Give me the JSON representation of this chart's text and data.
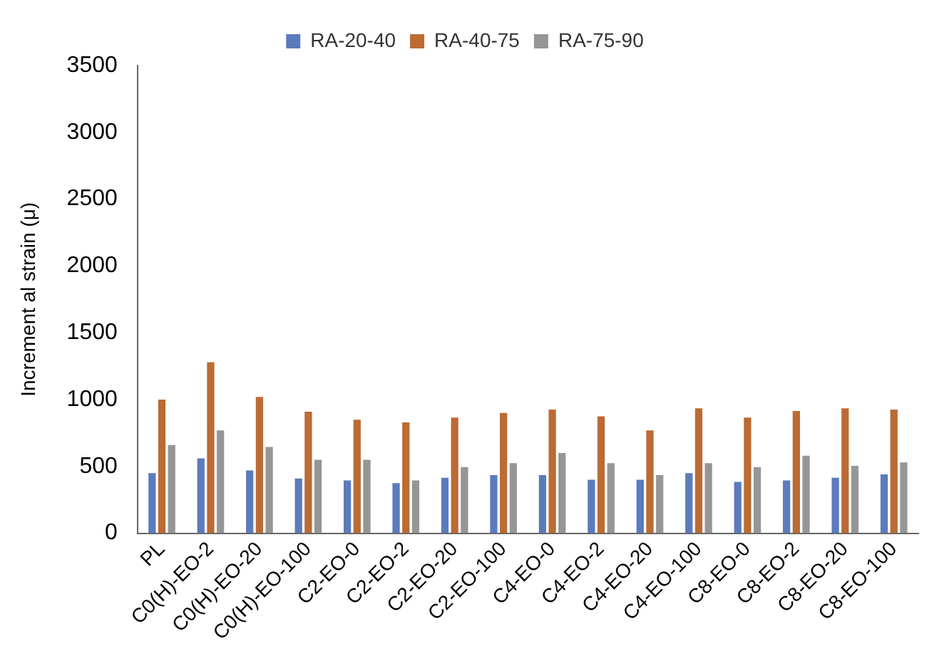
{
  "chart_data": {
    "type": "bar",
    "ylabel": "Increment al strain (μ)",
    "categories": [
      "PL",
      "C0(H)-EO-2",
      "C0(H)-EO-20",
      "C0(H)-EO-100",
      "C2-EO-0",
      "C2-EO-2",
      "C2-EO-20",
      "C2-EO-100",
      "C4-EO-0",
      "C4-EO-2",
      "C4-EO-20",
      "C4-EO-100",
      "C8-EO-0",
      "C8-EO-2",
      "C8-EO-20",
      "C8-EO-100"
    ],
    "series": [
      {
        "name": "RA-20-40",
        "color": "#5b7bbd",
        "values": [
          450,
          560,
          470,
          410,
          395,
          375,
          415,
          435,
          435,
          400,
          400,
          450,
          385,
          395,
          415,
          440
        ]
      },
      {
        "name": "RA-40-75",
        "color": "#bb6b33",
        "values": [
          1000,
          1280,
          1020,
          910,
          850,
          830,
          865,
          900,
          925,
          875,
          770,
          935,
          865,
          915,
          935,
          925
        ]
      },
      {
        "name": "RA-75-90",
        "color": "#969696",
        "values": [
          660,
          770,
          645,
          550,
          550,
          395,
          495,
          525,
          600,
          525,
          435,
          525,
          495,
          580,
          505,
          530
        ]
      }
    ],
    "ylim": [
      0,
      3500
    ],
    "yticks": [
      0,
      500,
      1000,
      1500,
      2000,
      2500,
      3000,
      3500
    ],
    "grid": false,
    "legend": "top"
  }
}
